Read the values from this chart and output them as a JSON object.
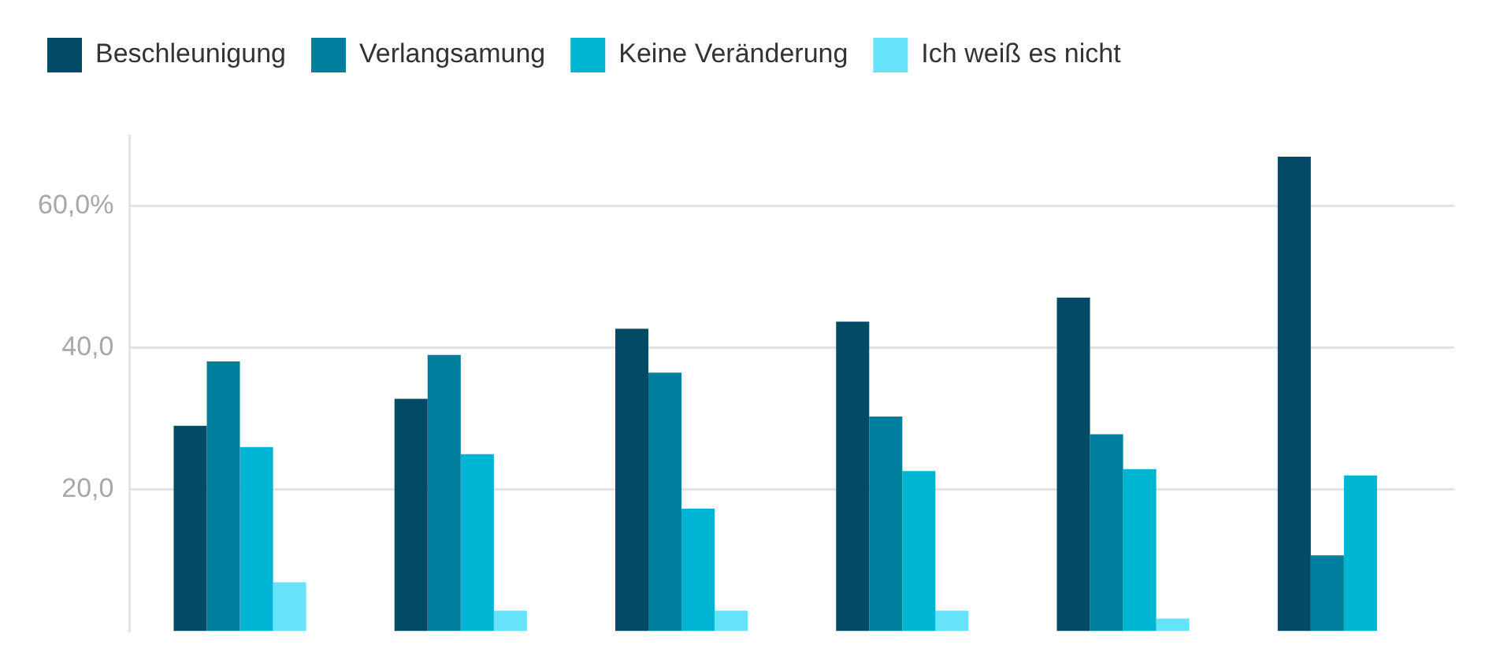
{
  "chart_data": {
    "type": "bar",
    "categories": [
      null,
      null,
      null,
      null,
      null,
      null
    ],
    "series": [
      {
        "name": "Beschleunigung",
        "color": "#024a66",
        "values": [
          29.0,
          32.8,
          42.7,
          43.7,
          47.1,
          67.0
        ]
      },
      {
        "name": "Verlangsamung",
        "color": "#007e9e",
        "values": [
          38.1,
          39.0,
          36.5,
          30.3,
          27.8,
          10.7
        ]
      },
      {
        "name": "Keine Veränderung",
        "color": "#00b4d4",
        "values": [
          26.0,
          25.0,
          17.3,
          22.6,
          22.9,
          22.0
        ]
      },
      {
        "name": "Ich weiß es nicht",
        "color": "#66e3f9",
        "values": [
          6.9,
          2.9,
          2.9,
          2.9,
          1.8,
          null
        ]
      }
    ],
    "ylim": [
      0,
      70
    ],
    "yticks": [
      {
        "value": 20,
        "label": "20,0"
      },
      {
        "value": 40,
        "label": "40,0"
      },
      {
        "value": 60,
        "label": "60,0%"
      }
    ],
    "grid": "y",
    "legend": "top left",
    "tick_labels": "y"
  }
}
